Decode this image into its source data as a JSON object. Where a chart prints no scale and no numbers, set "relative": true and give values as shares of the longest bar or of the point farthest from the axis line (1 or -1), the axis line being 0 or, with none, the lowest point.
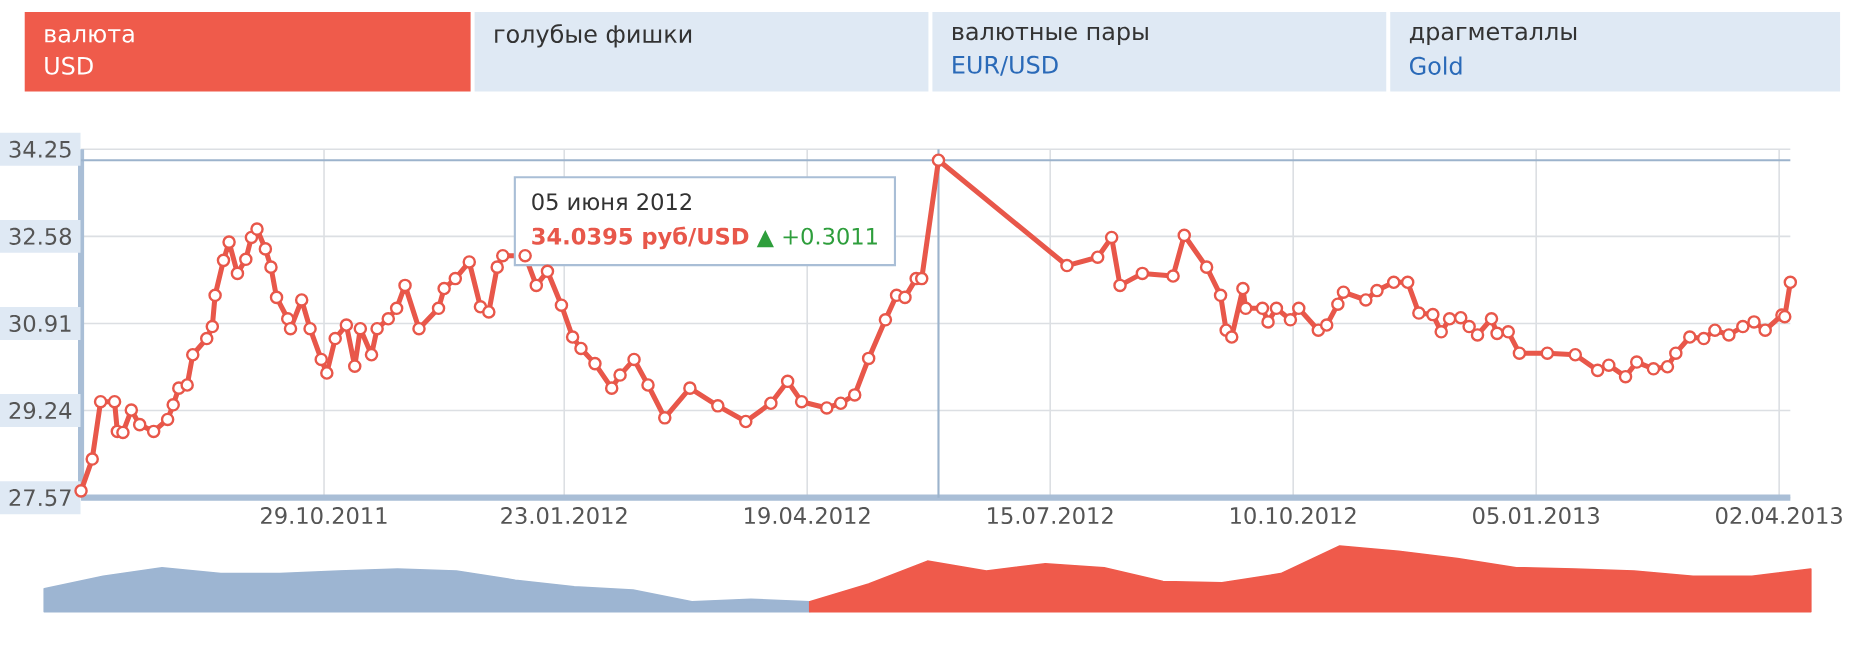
{
  "chart_data": [
    {
      "type": "line",
      "grid": true,
      "marker": "circle",
      "xlim": [
        "2011-08-03",
        "2013-04-06"
      ],
      "ylim": [
        27.57,
        34.25
      ],
      "xticks": [
        {
          "value": "2011-10-29",
          "label": "29.10.2011"
        },
        {
          "value": "2012-01-23",
          "label": "23.01.2012"
        },
        {
          "value": "2012-04-19",
          "label": "19.04.2012"
        },
        {
          "value": "2012-07-15",
          "label": "15.07.2012"
        },
        {
          "value": "2012-10-10",
          "label": "10.10.2012"
        },
        {
          "value": "2013-01-05",
          "label": "05.01.2013"
        },
        {
          "value": "2013-04-02",
          "label": "02.04.2013"
        }
      ],
      "yticks": [
        27.57,
        29.24,
        30.91,
        32.58,
        34.25
      ],
      "ref_lines": [
        {
          "axis": "x",
          "value": "2012-06-05",
          "color": "#9cb3cc"
        },
        {
          "axis": "y",
          "value": 34.04,
          "color": "#9cb3cc"
        }
      ],
      "annotations": [
        "валюта",
        "USD",
        "голубые фишки",
        "валютные пары",
        "EUR/USD",
        "драгметаллы",
        "Gold",
        "05 июня 2012",
        "34.0395 руб/USD",
        "▲ +0.3011"
      ],
      "series": [
        {
          "color": "#e8574a",
          "x": [
            "2011-08-03",
            "2011-08-07",
            "2011-08-10",
            "2011-08-15",
            "2011-08-16",
            "2011-08-18",
            "2011-08-21",
            "2011-08-24",
            "2011-08-29",
            "2011-09-03",
            "2011-09-05",
            "2011-09-07",
            "2011-09-10",
            "2011-09-12",
            "2011-09-17",
            "2011-09-19",
            "2011-09-20",
            "2011-09-23",
            "2011-09-25",
            "2011-09-28",
            "2011-10-01",
            "2011-10-03",
            "2011-10-05",
            "2011-10-08",
            "2011-10-10",
            "2011-10-12",
            "2011-10-16",
            "2011-10-17",
            "2011-10-21",
            "2011-10-24",
            "2011-10-28",
            "2011-10-30",
            "2011-11-02",
            "2011-11-06",
            "2011-11-09",
            "2011-11-11",
            "2011-11-15",
            "2011-11-17",
            "2011-11-21",
            "2011-11-24",
            "2011-11-27",
            "2011-12-02",
            "2011-12-09",
            "2011-12-11",
            "2011-12-15",
            "2011-12-20",
            "2011-12-24",
            "2011-12-27",
            "2011-12-30",
            "2012-01-01",
            "2012-01-09",
            "2012-01-13",
            "2012-01-17",
            "2012-01-22",
            "2012-01-26",
            "2012-01-29",
            "2012-02-03",
            "2012-02-09",
            "2012-02-12",
            "2012-02-17",
            "2012-02-22",
            "2012-02-28",
            "2012-03-08",
            "2012-03-18",
            "2012-03-28",
            "2012-04-06",
            "2012-04-12",
            "2012-04-17",
            "2012-04-26",
            "2012-05-01",
            "2012-05-06",
            "2012-05-11",
            "2012-05-17",
            "2012-05-21",
            "2012-05-24",
            "2012-05-28",
            "2012-05-30",
            "2012-06-05",
            "2012-07-21",
            "2012-08-01",
            "2012-08-06",
            "2012-08-09",
            "2012-08-17",
            "2012-08-28",
            "2012-09-01",
            "2012-09-09",
            "2012-09-14",
            "2012-09-16",
            "2012-09-18",
            "2012-09-22",
            "2012-09-23",
            "2012-09-29",
            "2012-10-01",
            "2012-10-04",
            "2012-10-09",
            "2012-10-12",
            "2012-10-19",
            "2012-10-22",
            "2012-10-26",
            "2012-10-28",
            "2012-11-05",
            "2012-11-09",
            "2012-11-15",
            "2012-11-20",
            "2012-11-24",
            "2012-11-29",
            "2012-12-02",
            "2012-12-05",
            "2012-12-09",
            "2012-12-12",
            "2012-12-15",
            "2012-12-20",
            "2012-12-22",
            "2012-12-26",
            "2012-12-30",
            "2013-01-09",
            "2013-01-19",
            "2013-01-27",
            "2013-01-31",
            "2013-02-06",
            "2013-02-10",
            "2013-02-16",
            "2013-02-21",
            "2013-02-24",
            "2013-03-01",
            "2013-03-06",
            "2013-03-10",
            "2013-03-15",
            "2013-03-20",
            "2013-03-24",
            "2013-03-28",
            "2013-04-03",
            "2013-04-04",
            "2013-04-06"
          ],
          "values": [
            27.7,
            28.31,
            29.41,
            29.41,
            28.84,
            28.82,
            29.25,
            28.97,
            28.84,
            29.07,
            29.35,
            29.67,
            29.73,
            30.31,
            30.62,
            30.85,
            31.45,
            32.12,
            32.47,
            31.87,
            32.14,
            32.56,
            32.72,
            32.34,
            31.99,
            31.41,
            31.0,
            30.81,
            31.36,
            30.81,
            30.22,
            29.96,
            30.62,
            30.88,
            30.09,
            30.81,
            30.31,
            30.81,
            31.0,
            31.2,
            31.64,
            30.81,
            31.2,
            31.58,
            31.77,
            32.09,
            31.23,
            31.13,
            31.99,
            32.21,
            32.21,
            31.64,
            31.91,
            31.26,
            30.65,
            30.43,
            30.14,
            29.67,
            29.92,
            30.22,
            29.73,
            29.1,
            29.67,
            29.33,
            29.03,
            29.38,
            29.8,
            29.41,
            29.29,
            29.38,
            29.54,
            30.24,
            30.98,
            31.45,
            31.41,
            31.77,
            31.77,
            34.04,
            32.02,
            32.18,
            32.56,
            31.64,
            31.87,
            31.82,
            32.6,
            31.99,
            31.45,
            30.78,
            30.65,
            31.58,
            31.2,
            31.2,
            30.94,
            31.2,
            30.98,
            31.2,
            30.78,
            30.88,
            31.28,
            31.51,
            31.36,
            31.54,
            31.7,
            31.7,
            31.11,
            31.08,
            30.75,
            31.0,
            31.02,
            30.85,
            30.69,
            31.0,
            30.72,
            30.75,
            30.34,
            30.34,
            30.31,
            30.01,
            30.11,
            29.89,
            30.17,
            30.04,
            30.08,
            30.34,
            30.65,
            30.62,
            30.78,
            30.69,
            30.85,
            30.94,
            30.78,
            31.07,
            31.04,
            31.7
          ]
        }
      ]
    },
    {
      "type": "area",
      "relative": true,
      "categories": [
        null,
        null,
        null,
        null,
        null,
        null,
        null,
        null,
        null,
        null,
        null,
        null,
        null,
        null,
        null,
        null,
        null,
        null,
        null,
        null,
        null,
        null,
        null,
        null,
        null,
        null,
        null,
        null,
        null,
        null,
        null
      ],
      "series": [
        {
          "color": "#9db5d2",
          "values": [
            0.35,
            0.54,
            0.67,
            0.58,
            0.58,
            0.62,
            0.65,
            0.62,
            0.48,
            0.38,
            0.33,
            0.15,
            0.19,
            0.15,
            null,
            null,
            null,
            null,
            null,
            null,
            null,
            null,
            null,
            null,
            null,
            null,
            null,
            null,
            null,
            null,
            null
          ]
        },
        {
          "color": "#ef5a4b",
          "values": [
            null,
            null,
            null,
            null,
            null,
            null,
            null,
            null,
            null,
            null,
            null,
            null,
            null,
            0.15,
            0.42,
            0.77,
            0.62,
            0.73,
            0.67,
            0.46,
            0.44,
            0.58,
            1,
            0.92,
            0.81,
            0.67,
            0.65,
            0.62,
            0.54,
            0.54,
            0.65
          ]
        }
      ]
    }
  ]
}
